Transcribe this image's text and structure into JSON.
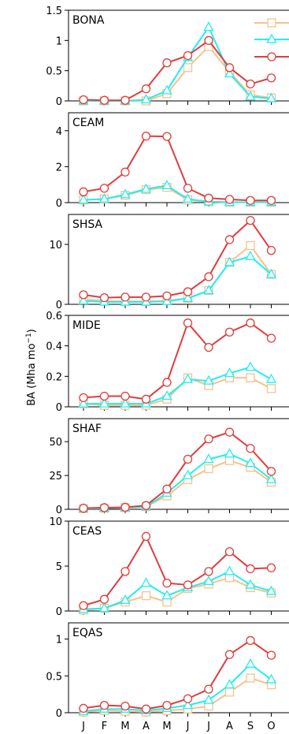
{
  "chart_data": {
    "type": "line",
    "ylabel": "BA (Mha mo",
    "ylabel_sup": "−1",
    "ylabel_close": ")",
    "x": [
      "J",
      "F",
      "M",
      "A",
      "M",
      "J",
      "J",
      "A",
      "S",
      "O"
    ],
    "series_colors": [
      "#f7c18c",
      "#22eef0",
      "#e03c3c"
    ],
    "series_markers": [
      "square",
      "triangle",
      "circle"
    ],
    "legend_placement": "top-right",
    "grid": false,
    "panels": [
      {
        "region": "BONA",
        "ylim": [
          0,
          1.5
        ],
        "yticks": [
          0,
          0.5,
          1,
          1.5
        ],
        "ytick_labels": [
          "0",
          "0.5",
          "1",
          "1.5"
        ],
        "series": [
          {
            "values": [
              0.0,
              0.0,
              0.0,
              0.0,
              0.12,
              0.55,
              0.9,
              0.48,
              0.1,
              0.05
            ]
          },
          {
            "values": [
              0.0,
              0.0,
              0.0,
              0.02,
              0.17,
              0.72,
              1.22,
              0.45,
              0.07,
              0.04
            ]
          },
          {
            "values": [
              0.02,
              0.01,
              0.01,
              0.2,
              0.63,
              0.75,
              1.0,
              0.55,
              0.28,
              0.38
            ]
          }
        ]
      },
      {
        "region": "CEAM",
        "ylim": [
          0,
          5
        ],
        "yticks": [
          0,
          2,
          4
        ],
        "ytick_labels": [
          "0",
          "2",
          "4"
        ],
        "series": [
          {
            "values": [
              0.15,
              0.2,
              0.4,
              0.72,
              0.85,
              0.15,
              0.05,
              0.02,
              0.02,
              0.02
            ]
          },
          {
            "values": [
              0.15,
              0.2,
              0.45,
              0.75,
              0.95,
              0.2,
              0.05,
              0.02,
              0.02,
              0.02
            ]
          },
          {
            "values": [
              0.6,
              0.8,
              1.7,
              3.7,
              3.68,
              0.8,
              0.25,
              0.18,
              0.12,
              0.12
            ]
          }
        ]
      },
      {
        "region": "SHSA",
        "ylim": [
          0,
          15
        ],
        "yticks": [
          0,
          10
        ],
        "ytick_labels": [
          "0",
          "10"
        ],
        "series": [
          {
            "values": [
              0.8,
              0.6,
              0.5,
              0.5,
              0.6,
              1.0,
              2.3,
              7.0,
              9.8,
              5.0
            ]
          },
          {
            "values": [
              0.6,
              0.4,
              0.4,
              0.4,
              0.5,
              1.0,
              2.3,
              7.0,
              8.0,
              5.0
            ]
          },
          {
            "values": [
              1.6,
              1.1,
              1.2,
              1.2,
              1.4,
              2.1,
              4.6,
              10.8,
              14.0,
              9.0
            ]
          }
        ]
      },
      {
        "region": "MIDE",
        "ylim": [
          0,
          0.6
        ],
        "yticks": [
          0,
          0.2,
          0.4,
          0.6
        ],
        "ytick_labels": [
          "0",
          "0.2",
          "0.4",
          "0.6"
        ],
        "series": [
          {
            "values": [
              0.02,
              0.01,
              0.01,
              0.01,
              0.05,
              0.19,
              0.14,
              0.19,
              0.19,
              0.12
            ]
          },
          {
            "values": [
              0.02,
              0.02,
              0.02,
              0.02,
              0.07,
              0.18,
              0.17,
              0.22,
              0.26,
              0.18
            ]
          },
          {
            "values": [
              0.06,
              0.07,
              0.07,
              0.05,
              0.16,
              0.55,
              0.39,
              0.49,
              0.55,
              0.45
            ]
          }
        ]
      },
      {
        "region": "SHAF",
        "ylim": [
          0,
          67
        ],
        "yticks": [
          0,
          25,
          50
        ],
        "ytick_labels": [
          "0",
          "25",
          "50"
        ],
        "series": [
          {
            "values": [
              0.5,
              0.8,
              1.2,
              2.0,
              10.0,
              22.0,
              30.0,
              36.0,
              31.0,
              20.0
            ]
          },
          {
            "values": [
              0.5,
              0.8,
              1.2,
              2.0,
              12.0,
              25.0,
              37.0,
              41.0,
              34.0,
              22.0
            ]
          },
          {
            "values": [
              0.8,
              1.2,
              1.5,
              2.8,
              15.0,
              37.0,
              52.0,
              57.0,
              45.0,
              28.0
            ]
          }
        ]
      },
      {
        "region": "CEAS",
        "ylim": [
          0,
          10
        ],
        "yticks": [
          0,
          5,
          10
        ],
        "ytick_labels": [
          "0",
          "5",
          "10"
        ],
        "series": [
          {
            "values": [
              0.1,
              0.3,
              1.0,
              1.7,
              1.0,
              2.5,
              3.0,
              3.7,
              2.6,
              2.0
            ]
          },
          {
            "values": [
              0.2,
              0.3,
              1.2,
              3.1,
              1.7,
              2.6,
              3.3,
              4.4,
              2.9,
              2.2
            ]
          },
          {
            "values": [
              0.6,
              1.3,
              4.4,
              8.3,
              3.1,
              2.9,
              4.4,
              6.6,
              4.7,
              4.8
            ]
          }
        ]
      },
      {
        "region": "EQAS",
        "ylim": [
          0,
          1.22
        ],
        "yticks": [
          0,
          0.5,
          1
        ],
        "ytick_labels": [
          "0",
          "0.5",
          "1"
        ],
        "series": [
          {
            "values": [
              0.01,
              0.03,
              0.02,
              0.01,
              0.03,
              0.05,
              0.09,
              0.28,
              0.47,
              0.38
            ]
          },
          {
            "values": [
              0.02,
              0.05,
              0.05,
              0.03,
              0.06,
              0.1,
              0.17,
              0.38,
              0.66,
              0.45
            ]
          },
          {
            "values": [
              0.06,
              0.1,
              0.09,
              0.05,
              0.1,
              0.19,
              0.32,
              0.79,
              0.98,
              0.78
            ]
          }
        ]
      }
    ]
  }
}
